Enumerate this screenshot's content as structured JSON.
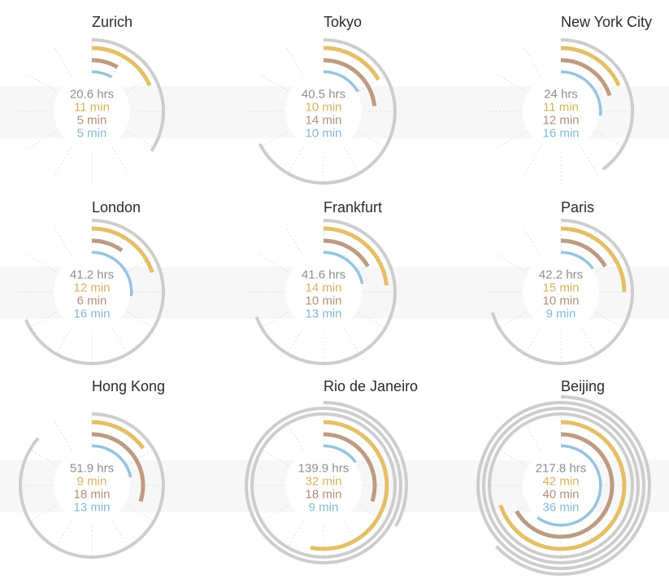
{
  "page": {
    "background": "#ffffff",
    "row_band_color": "#f7f7f7"
  },
  "chart_data": {
    "type": "radial_small_multiples",
    "layout_hint": "3x3 grid of radial clock charts; gray ring = hours (one full circle = 60 hrs, extra hours wrap to larger outer rings); colored arcs = minutes (full circle = 60 min), all arcs start at 12 o'clock and sweep clockwise; 12 dotted tick spokes every 5 units; values printed in the center",
    "scale": {
      "hours_per_ring": 60,
      "minutes_per_circle": 60
    },
    "series": [
      {
        "key": "hours",
        "arc_color": "#cdcdcd",
        "text_color": "#8e8e8e"
      },
      {
        "key": "gold_minutes",
        "arc_color": "#e3bf68",
        "text_color": "#d6b25c"
      },
      {
        "key": "brown_minutes",
        "arc_color": "#bd9b82",
        "text_color": "#b18f79"
      },
      {
        "key": "blue_minutes",
        "arc_color": "#96c4df",
        "text_color": "#82b9d9"
      }
    ],
    "cities": [
      {
        "name": "Zurich",
        "hours": 20.6,
        "hours_label": "20.6 hrs",
        "minutes": [
          {
            "value": 11,
            "label": "11 min"
          },
          {
            "value": 5,
            "label": "5 min"
          },
          {
            "value": 5,
            "label": "5 min"
          }
        ]
      },
      {
        "name": "Tokyo",
        "hours": 40.5,
        "hours_label": "40.5 hrs",
        "minutes": [
          {
            "value": 10,
            "label": "10 min"
          },
          {
            "value": 14,
            "label": "14 min"
          },
          {
            "value": 10,
            "label": "10 min"
          }
        ]
      },
      {
        "name": "New York City",
        "hours": 24,
        "hours_label": "24 hrs",
        "minutes": [
          {
            "value": 11,
            "label": "11 min"
          },
          {
            "value": 12,
            "label": "12 min"
          },
          {
            "value": 16,
            "label": "16 min"
          }
        ]
      },
      {
        "name": "London",
        "hours": 41.2,
        "hours_label": "41.2 hrs",
        "minutes": [
          {
            "value": 12,
            "label": "12 min"
          },
          {
            "value": 6,
            "label": "6 min"
          },
          {
            "value": 16,
            "label": "16 min"
          }
        ]
      },
      {
        "name": "Frankfurt",
        "hours": 41.6,
        "hours_label": "41.6 hrs",
        "minutes": [
          {
            "value": 14,
            "label": "14 min"
          },
          {
            "value": 10,
            "label": "10 min"
          },
          {
            "value": 13,
            "label": "13 min"
          }
        ]
      },
      {
        "name": "Paris",
        "hours": 42.2,
        "hours_label": "42.2 hrs",
        "minutes": [
          {
            "value": 15,
            "label": "15 min"
          },
          {
            "value": 10,
            "label": "10 min"
          },
          {
            "value": 9,
            "label": "9 min"
          }
        ]
      },
      {
        "name": "Hong Kong",
        "hours": 51.9,
        "hours_label": "51.9 hrs",
        "minutes": [
          {
            "value": 9,
            "label": "9 min"
          },
          {
            "value": 18,
            "label": "18 min"
          },
          {
            "value": 13,
            "label": "13 min"
          }
        ]
      },
      {
        "name": "Rio de Janeiro",
        "hours": 139.9,
        "hours_label": "139.9 hrs",
        "minutes": [
          {
            "value": 32,
            "label": "32 min"
          },
          {
            "value": 18,
            "label": "18 min"
          },
          {
            "value": 9,
            "label": "9 min"
          }
        ]
      },
      {
        "name": "Beijing",
        "hours": 217.8,
        "hours_label": "217.8 hrs",
        "minutes": [
          {
            "value": 42,
            "label": "42 min"
          },
          {
            "value": 40,
            "label": "40 min"
          },
          {
            "value": 36,
            "label": "36 min"
          }
        ]
      }
    ]
  }
}
